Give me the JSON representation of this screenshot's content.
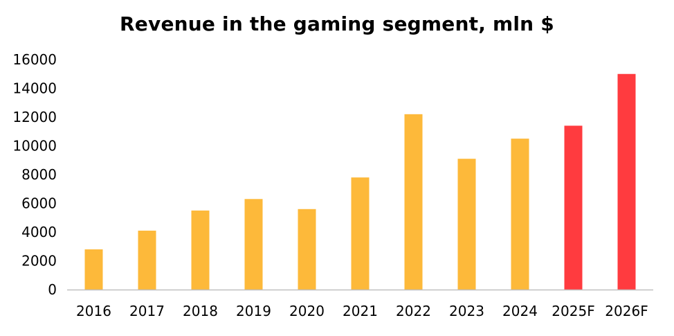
{
  "chart_data": {
    "type": "bar",
    "title": "Revenue in the gaming segment, mln $",
    "xlabel": "",
    "ylabel": "",
    "categories": [
      "2016",
      "2017",
      "2018",
      "2019",
      "2020",
      "2021",
      "2022",
      "2023",
      "2024",
      "2025F",
      "2026F"
    ],
    "values": [
      2800,
      4100,
      5500,
      6300,
      5600,
      7800,
      12200,
      9100,
      10500,
      11400,
      15000
    ],
    "bar_kinds": [
      "actual",
      "actual",
      "actual",
      "actual",
      "actual",
      "actual",
      "actual",
      "actual",
      "actual",
      "forecast",
      "forecast"
    ],
    "ylim": [
      0,
      16000
    ],
    "yticks": [
      0,
      2000,
      4000,
      6000,
      8000,
      10000,
      12000,
      14000,
      16000
    ],
    "grid": false,
    "colors": {
      "actual": "#FDB93A",
      "forecast": "#FF3B3F",
      "axis": "#BFBFBF",
      "text": "#000000"
    }
  }
}
